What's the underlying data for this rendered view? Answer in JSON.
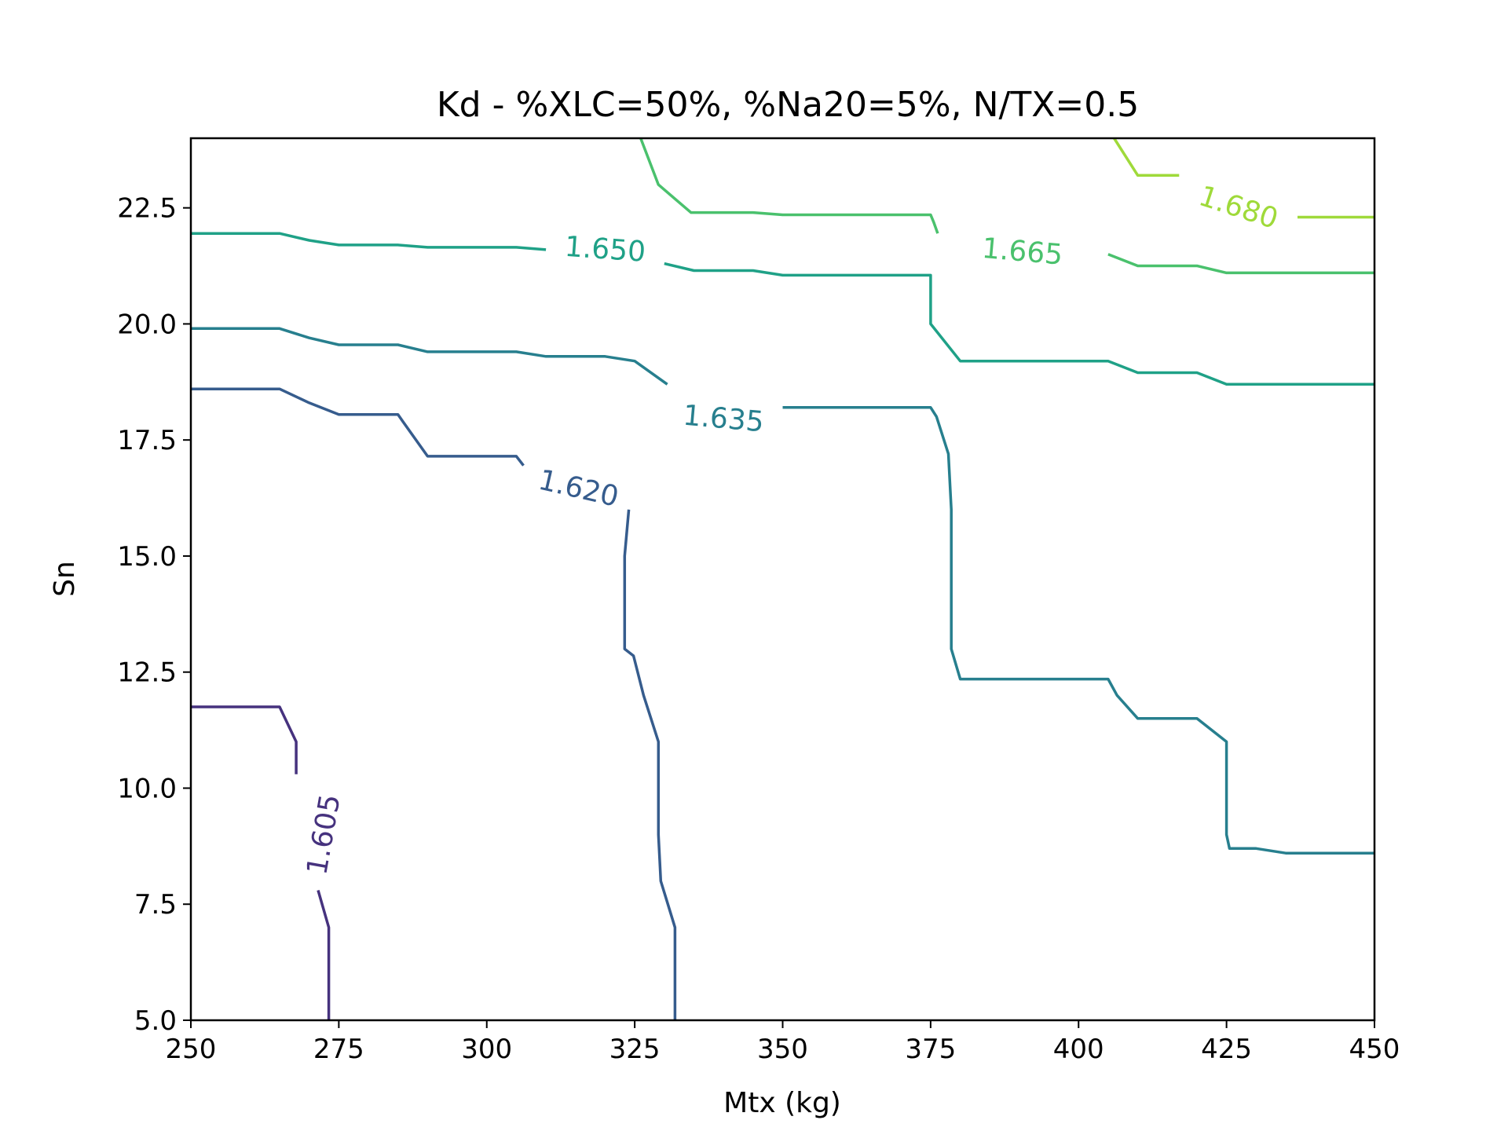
{
  "chart_data": {
    "type": "contour",
    "title": "Kd - %XLC=50%, %Na20=5%, N/TX=0.5",
    "xlabel": "Mtx (kg)",
    "ylabel": "Sn",
    "xlim": [
      250,
      450
    ],
    "ylim": [
      5,
      24
    ],
    "xticks": [
      250,
      275,
      300,
      325,
      350,
      375,
      400,
      425,
      450
    ],
    "xtick_labels": [
      "250",
      "275",
      "300",
      "325",
      "350",
      "375",
      "400",
      "425",
      "450"
    ],
    "yticks": [
      5,
      7.5,
      10,
      12.5,
      15,
      17.5,
      20,
      22.5
    ],
    "ytick_labels": [
      "5.0",
      "7.5",
      "10.0",
      "12.5",
      "15.0",
      "17.5",
      "20.0",
      "22.5"
    ],
    "grid": false,
    "levels": [
      {
        "level": "1.605",
        "color": "#46327e",
        "label_at": [
          272.5,
          9.0
        ],
        "label_rotation": -80,
        "segments": [
          [
            [
              250,
              11.75
            ],
            [
              265,
              11.75
            ],
            [
              267.8,
              11.0
            ],
            [
              267.8,
              10.3
            ]
          ],
          [
            [
              271.5,
              7.8
            ],
            [
              273.3,
              7.0
            ],
            [
              273.3,
              5.0
            ]
          ]
        ]
      },
      {
        "level": "1.620",
        "color": "#365c8d",
        "label_at": [
          315.5,
          16.45
        ],
        "label_rotation": 13,
        "segments": [
          [
            [
              250,
              18.6
            ],
            [
              265,
              18.6
            ],
            [
              270,
              18.3
            ],
            [
              275,
              18.05
            ],
            [
              285,
              18.05
            ],
            [
              285.8,
              17.9
            ],
            [
              290,
              17.15
            ],
            [
              305,
              17.15
            ],
            [
              306.2,
              16.95
            ]
          ],
          [
            [
              324,
              16.0
            ],
            [
              323.3,
              15.0
            ],
            [
              323.3,
              13.0
            ],
            [
              324.8,
              12.85
            ],
            [
              326.5,
              12.0
            ],
            [
              329,
              11.0
            ],
            [
              329,
              9.0
            ],
            [
              329.4,
              8.0
            ],
            [
              331.8,
              7.0
            ],
            [
              331.8,
              5.0
            ]
          ]
        ]
      },
      {
        "level": "1.635",
        "color": "#277f8e",
        "label_at": [
          340,
          17.95
        ],
        "label_rotation": 5,
        "segments": [
          [
            [
              250,
              19.9
            ],
            [
              265,
              19.9
            ],
            [
              270,
              19.7
            ],
            [
              275,
              19.55
            ],
            [
              285,
              19.55
            ],
            [
              290,
              19.4
            ],
            [
              305,
              19.4
            ],
            [
              310,
              19.3
            ],
            [
              320,
              19.3
            ],
            [
              325,
              19.2
            ],
            [
              330.5,
              18.7
            ]
          ],
          [
            [
              350,
              18.2
            ],
            [
              375,
              18.2
            ],
            [
              376,
              18.0
            ],
            [
              378,
              17.2
            ],
            [
              378.5,
              16.0
            ],
            [
              378.5,
              13.0
            ],
            [
              380,
              12.35
            ],
            [
              405,
              12.35
            ],
            [
              406.5,
              12.0
            ],
            [
              410,
              11.5
            ],
            [
              420,
              11.5
            ],
            [
              425,
              11.0
            ],
            [
              425,
              9.0
            ],
            [
              425.5,
              8.7
            ],
            [
              430,
              8.7
            ],
            [
              435,
              8.6
            ],
            [
              450,
              8.6
            ]
          ]
        ]
      },
      {
        "level": "1.650",
        "color": "#1fa187",
        "label_at": [
          320,
          21.6
        ],
        "label_rotation": 4,
        "segments": [
          [
            [
              250,
              21.95
            ],
            [
              265,
              21.95
            ],
            [
              270,
              21.8
            ],
            [
              275,
              21.7
            ],
            [
              285,
              21.7
            ],
            [
              290,
              21.65
            ],
            [
              305,
              21.65
            ],
            [
              310,
              21.6
            ]
          ],
          [
            [
              330,
              21.3
            ],
            [
              335,
              21.15
            ],
            [
              345,
              21.15
            ],
            [
              350,
              21.05
            ],
            [
              375,
              21.05
            ],
            [
              375,
              20.0
            ],
            [
              380,
              19.2
            ],
            [
              405,
              19.2
            ],
            [
              410,
              18.95
            ],
            [
              420,
              18.95
            ],
            [
              425,
              18.7
            ],
            [
              450,
              18.7
            ]
          ]
        ]
      },
      {
        "level": "1.665",
        "color": "#4ac16d",
        "label_at": [
          390.5,
          21.55
        ],
        "label_rotation": 5,
        "segments": [
          [
            [
              326,
              24.0
            ],
            [
              329,
              23.0
            ],
            [
              334.5,
              22.4
            ],
            [
              345,
              22.4
            ],
            [
              350,
              22.35
            ],
            [
              375,
              22.35
            ],
            [
              375.5,
              22.2
            ],
            [
              376.2,
              21.95
            ]
          ],
          [
            [
              405,
              21.5
            ],
            [
              410,
              21.25
            ],
            [
              420,
              21.25
            ],
            [
              425,
              21.1
            ],
            [
              450,
              21.1
            ]
          ]
        ]
      },
      {
        "level": "1.680",
        "color": "#9fda3a",
        "label_at": [
          427,
          22.5
        ],
        "label_rotation": 18,
        "segments": [
          [
            [
              406,
              24.0
            ],
            [
              410,
              23.2
            ],
            [
              417,
              23.2
            ]
          ],
          [
            [
              437,
              22.3
            ],
            [
              450,
              22.3
            ]
          ]
        ]
      }
    ]
  }
}
